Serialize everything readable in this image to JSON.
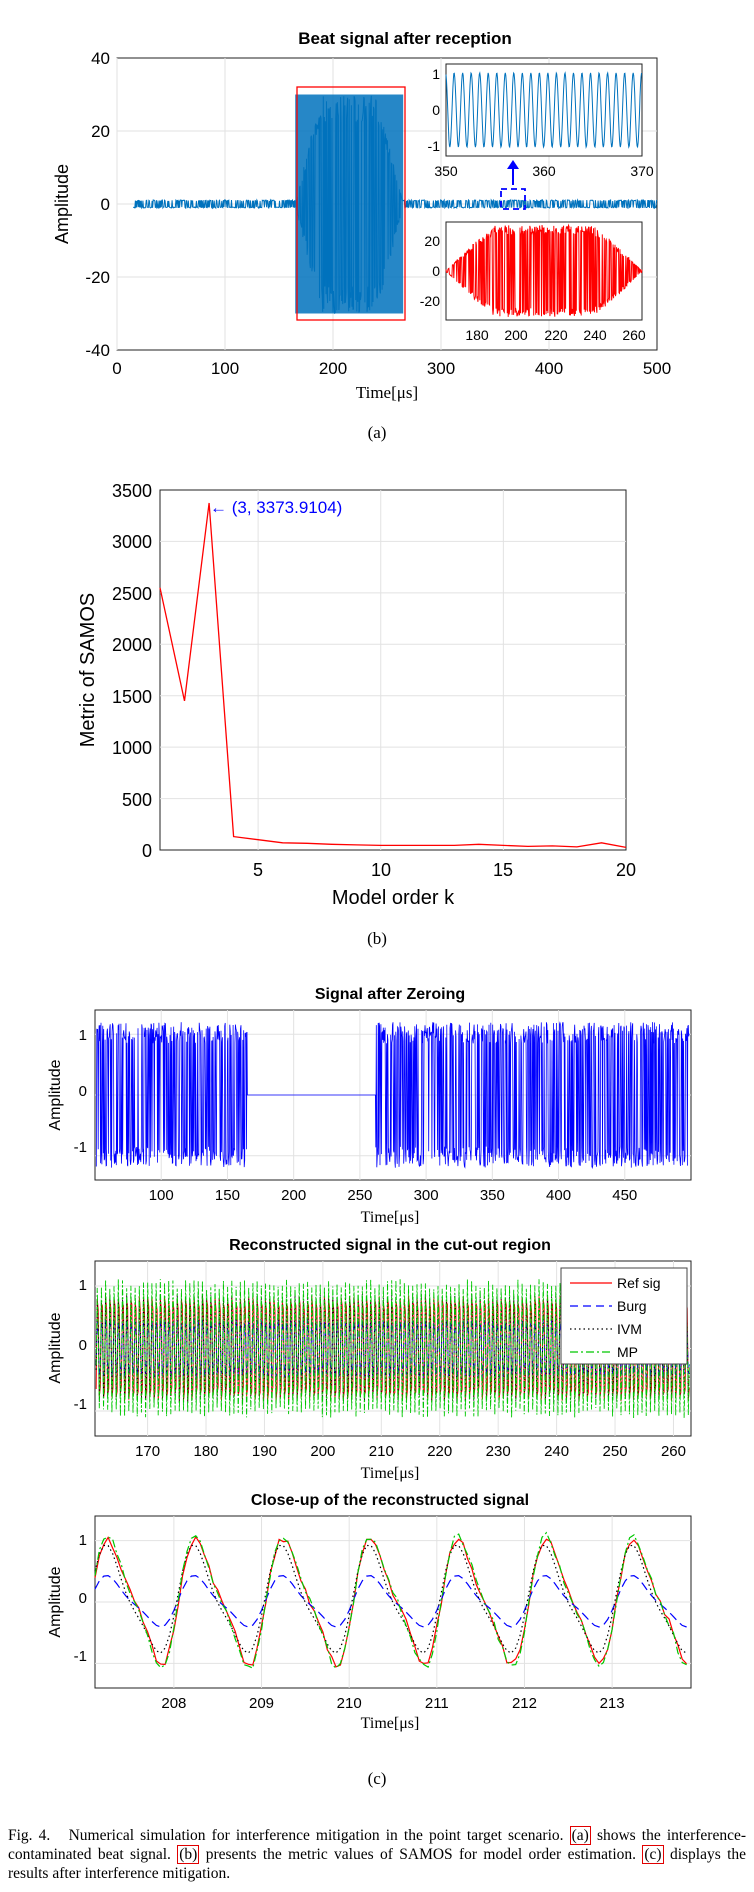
{
  "colors": {
    "blue": "#0072BD",
    "red": "#FF0000",
    "zeroing_blue": "#0000FF",
    "burg": "#0000FF",
    "ivm": "#000000",
    "mp": "#00C800",
    "annotation": "#0000FF"
  },
  "panel_a": {
    "label": "(a)",
    "main": {
      "title": "Beat signal after reception",
      "xlabel": "Time[μs]",
      "ylabel": "Amplitude",
      "xlim": [
        0,
        500
      ],
      "ylim": [
        -40,
        40
      ],
      "xticks": [
        "0",
        "100",
        "200",
        "300",
        "400",
        "500"
      ],
      "yticks": [
        "40",
        "20",
        "0",
        "-20",
        "-40"
      ]
    },
    "inset_top": {
      "xlim": [
        350,
        370
      ],
      "ylim": [
        -1.3,
        1.3
      ],
      "xticks": [
        "350",
        "360",
        "370"
      ],
      "yticks": [
        "1",
        "0",
        "-1"
      ]
    },
    "inset_bottom": {
      "xlim": [
        165,
        265
      ],
      "ylim": [
        -32,
        32
      ],
      "xticks": [
        "180",
        "200",
        "220",
        "240",
        "260"
      ],
      "yticks": [
        "20",
        "0",
        "-20"
      ]
    }
  },
  "panel_b": {
    "label": "(b)",
    "xlabel": "Model order k",
    "ylabel": "Metric of SAMOS",
    "annotation": "← (3, 3373.9104)",
    "xticks": [
      "5",
      "10",
      "15",
      "20"
    ],
    "yticks": [
      "3500",
      "3000",
      "2500",
      "2000",
      "1500",
      "1000",
      "500",
      "0"
    ]
  },
  "panel_c": {
    "label": "(c)",
    "zeroing": {
      "title": "Signal after Zeroing",
      "xlabel": "Time[μs]",
      "ylabel": "Amplitude",
      "xticks": [
        "100",
        "150",
        "200",
        "250",
        "300",
        "350",
        "400",
        "450"
      ],
      "yticks": [
        "1",
        "0",
        "-1"
      ]
    },
    "recon": {
      "title": "Reconstructed signal in the cut-out region",
      "xlabel": "Time[μs]",
      "ylabel": "Amplitude",
      "xticks": [
        "170",
        "180",
        "190",
        "200",
        "210",
        "220",
        "230",
        "240",
        "250",
        "260"
      ],
      "yticks": [
        "1",
        "0",
        "-1"
      ],
      "legend": [
        "Ref sig",
        "Burg",
        "IVM",
        "MP"
      ]
    },
    "closeup": {
      "title": "Close-up of the reconstructed signal",
      "xlabel": "Time[μs]",
      "ylabel": "Amplitude",
      "xticks": [
        "208",
        "209",
        "210",
        "211",
        "212",
        "213"
      ],
      "yticks": [
        "1",
        "0",
        "-1"
      ]
    }
  },
  "chart_data": [
    {
      "type": "line",
      "title": "Beat signal after reception",
      "xlabel": "Time[μs]",
      "ylabel": "Amplitude",
      "xlim": [
        0,
        500
      ],
      "ylim": [
        -40,
        40
      ],
      "series": [
        {
          "name": "beat signal",
          "description": "noise-level signal (~±1) with interference burst between ~165 and ~265 μs reaching about ±30"
        }
      ],
      "annotations": [
        "zoom inset 350–370 μs",
        "zoom inset 165–265 μs (red)"
      ]
    },
    {
      "type": "line",
      "title": "",
      "xlabel": "Model order k",
      "ylabel": "Metric of SAMOS",
      "xlim": [
        1,
        20
      ],
      "ylim": [
        0,
        3500
      ],
      "series": [
        {
          "name": "SAMOS metric",
          "x": [
            1,
            2,
            3,
            4,
            5,
            6,
            7,
            8,
            9,
            10,
            11,
            12,
            13,
            14,
            15,
            16,
            17,
            18,
            19,
            20
          ],
          "y": [
            2550,
            1450,
            3374,
            130,
            100,
            70,
            65,
            55,
            50,
            45,
            45,
            45,
            45,
            55,
            45,
            35,
            40,
            30,
            70,
            25
          ]
        }
      ],
      "annotations": [
        "(3, 3373.9104)"
      ]
    },
    {
      "type": "line",
      "title": "Signal after Zeroing",
      "xlabel": "Time[μs]",
      "ylabel": "Amplitude",
      "xlim": [
        50,
        500
      ],
      "ylim": [
        -1.4,
        1.4
      ],
      "series": [
        {
          "name": "zeroed signal",
          "description": "oscillation ±1.2, zeroed between ~165 and ~262 μs"
        }
      ]
    },
    {
      "type": "line",
      "title": "Reconstructed signal in the cut-out region",
      "xlabel": "Time[μs]",
      "ylabel": "Amplitude",
      "xlim": [
        161,
        263
      ],
      "ylim": [
        -1.4,
        1.4
      ],
      "series": [
        {
          "name": "Ref sig"
        },
        {
          "name": "Burg"
        },
        {
          "name": "IVM"
        },
        {
          "name": "MP"
        }
      ]
    },
    {
      "type": "line",
      "title": "Close-up of the reconstructed signal",
      "xlabel": "Time[μs]",
      "ylabel": "Amplitude",
      "xlim": [
        207.1,
        213.9
      ],
      "ylim": [
        -1.4,
        1.4
      ],
      "series": [
        {
          "name": "Ref sig",
          "amplitude": 1.1
        },
        {
          "name": "Burg",
          "amplitude": 0.45
        },
        {
          "name": "IVM",
          "amplitude": 0.95
        },
        {
          "name": "MP",
          "amplitude": 1.15
        }
      ]
    }
  ],
  "caption": {
    "fig": "Fig. 4.",
    "part1": "Numerical simulation for interference mitigation in the point target scenario.",
    "ref_a": "(a)",
    "part2": "shows the interference-contaminated beat signal.",
    "ref_b": "(b)",
    "part3": "presents the metric values of SAMOS for model order estimation.",
    "ref_c": "(c)",
    "part4": "displays the results after interference mitigation."
  }
}
